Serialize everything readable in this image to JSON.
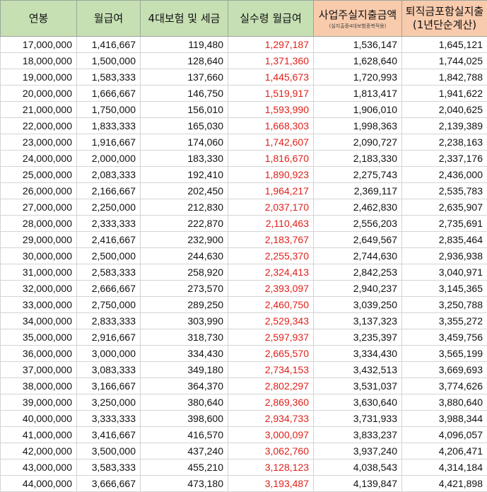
{
  "headers": {
    "annual_salary": "연봉",
    "monthly_salary": "월급여",
    "insurance_tax": "4대보험 및 세금",
    "net_monthly": "실수령 월급여",
    "employer_cost": "사업주실지출금액",
    "employer_cost_note": "(실지출중4대보험중복적용)",
    "with_severance_line1": "퇴직금포함실지출",
    "with_severance_line2": "(1년단순계산)"
  },
  "rows": [
    [
      "17,000,000",
      "1,416,667",
      "119,480",
      "1,297,187",
      "1,536,147",
      "1,645,121"
    ],
    [
      "18,000,000",
      "1,500,000",
      "128,640",
      "1,371,360",
      "1,628,640",
      "1,744,025"
    ],
    [
      "19,000,000",
      "1,583,333",
      "137,660",
      "1,445,673",
      "1,720,993",
      "1,842,788"
    ],
    [
      "20,000,000",
      "1,666,667",
      "146,750",
      "1,519,917",
      "1,813,417",
      "1,941,622"
    ],
    [
      "21,000,000",
      "1,750,000",
      "156,010",
      "1,593,990",
      "1,906,010",
      "2,040,625"
    ],
    [
      "22,000,000",
      "1,833,333",
      "165,030",
      "1,668,303",
      "1,998,363",
      "2,139,389"
    ],
    [
      "23,000,000",
      "1,916,667",
      "174,060",
      "1,742,607",
      "2,090,727",
      "2,238,163"
    ],
    [
      "24,000,000",
      "2,000,000",
      "183,330",
      "1,816,670",
      "2,183,330",
      "2,337,176"
    ],
    [
      "25,000,000",
      "2,083,333",
      "192,410",
      "1,890,923",
      "2,275,743",
      "2,436,000"
    ],
    [
      "26,000,000",
      "2,166,667",
      "202,450",
      "1,964,217",
      "2,369,117",
      "2,535,783"
    ],
    [
      "27,000,000",
      "2,250,000",
      "212,830",
      "2,037,170",
      "2,462,830",
      "2,635,907"
    ],
    [
      "28,000,000",
      "2,333,333",
      "222,870",
      "2,110,463",
      "2,556,203",
      "2,735,691"
    ],
    [
      "29,000,000",
      "2,416,667",
      "232,900",
      "2,183,767",
      "2,649,567",
      "2,835,464"
    ],
    [
      "30,000,000",
      "2,500,000",
      "244,630",
      "2,255,370",
      "2,744,630",
      "2,936,938"
    ],
    [
      "31,000,000",
      "2,583,333",
      "258,920",
      "2,324,413",
      "2,842,253",
      "3,040,971"
    ],
    [
      "32,000,000",
      "2,666,667",
      "273,570",
      "2,393,097",
      "2,940,237",
      "3,145,365"
    ],
    [
      "33,000,000",
      "2,750,000",
      "289,250",
      "2,460,750",
      "3,039,250",
      "3,250,788"
    ],
    [
      "34,000,000",
      "2,833,333",
      "303,990",
      "2,529,343",
      "3,137,323",
      "3,355,272"
    ],
    [
      "35,000,000",
      "2,916,667",
      "318,730",
      "2,597,937",
      "3,235,397",
      "3,459,756"
    ],
    [
      "36,000,000",
      "3,000,000",
      "334,430",
      "2,665,570",
      "3,334,430",
      "3,565,199"
    ],
    [
      "37,000,000",
      "3,083,333",
      "349,180",
      "2,734,153",
      "3,432,513",
      "3,669,693"
    ],
    [
      "38,000,000",
      "3,166,667",
      "364,370",
      "2,802,297",
      "3,531,037",
      "3,774,626"
    ],
    [
      "39,000,000",
      "3,250,000",
      "380,640",
      "2,869,360",
      "3,630,640",
      "3,880,640"
    ],
    [
      "40,000,000",
      "3,333,333",
      "398,600",
      "2,934,733",
      "3,731,933",
      "3,988,344"
    ],
    [
      "41,000,000",
      "3,416,667",
      "416,570",
      "3,000,097",
      "3,833,237",
      "4,096,057"
    ],
    [
      "42,000,000",
      "3,500,000",
      "437,240",
      "3,062,760",
      "3,937,240",
      "4,206,471"
    ],
    [
      "43,000,000",
      "3,583,333",
      "455,210",
      "3,128,123",
      "4,038,543",
      "4,314,184"
    ],
    [
      "44,000,000",
      "3,666,667",
      "473,180",
      "3,193,487",
      "4,139,847",
      "4,421,898"
    ]
  ],
  "colors": {
    "header_green": "#c6e0b4",
    "header_orange": "#f8cbad",
    "net_salary_red": "#e0201a"
  }
}
